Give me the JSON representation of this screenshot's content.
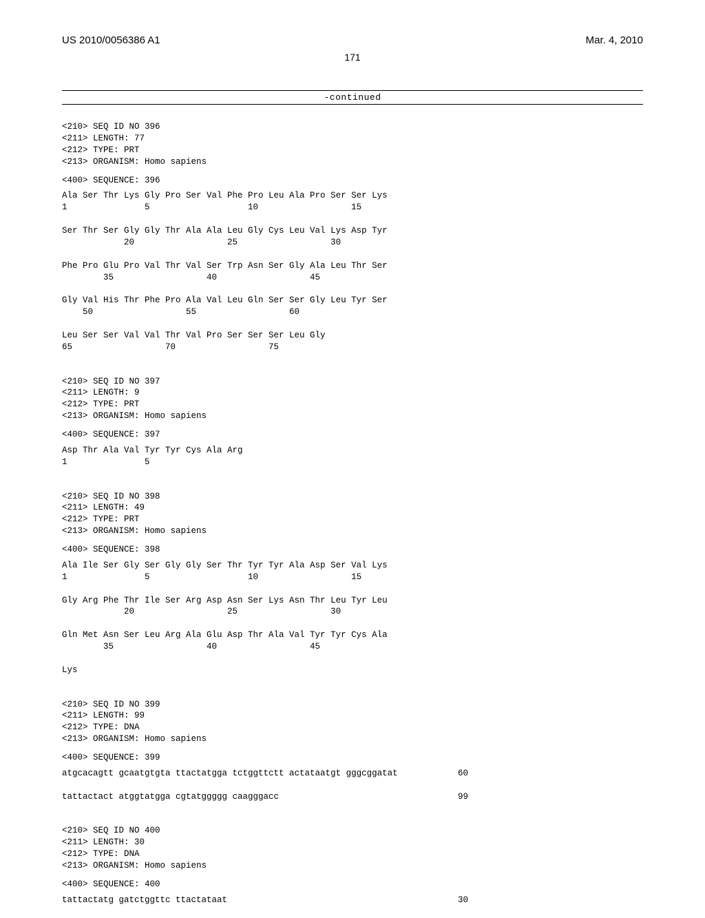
{
  "header": {
    "pub_number": "US 2010/0056386 A1",
    "pub_date": "Mar. 4, 2010"
  },
  "page_number": "171",
  "continued_label": "-continued",
  "sequences": [
    {
      "meta": [
        "<210> SEQ ID NO 396",
        "<211> LENGTH: 77",
        "<212> TYPE: PRT",
        "<213> ORGANISM: Homo sapiens"
      ],
      "seq_header": "<400> SEQUENCE: 396",
      "lines": [
        {
          "residues": "Ala Ser Thr Lys Gly Pro Ser Val Phe Pro Leu Ala Pro Ser Ser Lys",
          "numbers": "1               5                   10                  15"
        },
        {
          "residues": "Ser Thr Ser Gly Gly Thr Ala Ala Leu Gly Cys Leu Val Lys Asp Tyr",
          "numbers": "            20                  25                  30"
        },
        {
          "residues": "Phe Pro Glu Pro Val Thr Val Ser Trp Asn Ser Gly Ala Leu Thr Ser",
          "numbers": "        35                  40                  45"
        },
        {
          "residues": "Gly Val His Thr Phe Pro Ala Val Leu Gln Ser Ser Gly Leu Tyr Ser",
          "numbers": "    50                  55                  60"
        },
        {
          "residues": "Leu Ser Ser Val Val Thr Val Pro Ser Ser Ser Leu Gly",
          "numbers": "65                  70                  75"
        }
      ]
    },
    {
      "meta": [
        "<210> SEQ ID NO 397",
        "<211> LENGTH: 9",
        "<212> TYPE: PRT",
        "<213> ORGANISM: Homo sapiens"
      ],
      "seq_header": "<400> SEQUENCE: 397",
      "lines": [
        {
          "residues": "Asp Thr Ala Val Tyr Tyr Cys Ala Arg",
          "numbers": "1               5"
        }
      ]
    },
    {
      "meta": [
        "<210> SEQ ID NO 398",
        "<211> LENGTH: 49",
        "<212> TYPE: PRT",
        "<213> ORGANISM: Homo sapiens"
      ],
      "seq_header": "<400> SEQUENCE: 398",
      "lines": [
        {
          "residues": "Ala Ile Ser Gly Ser Gly Gly Ser Thr Tyr Tyr Ala Asp Ser Val Lys",
          "numbers": "1               5                   10                  15"
        },
        {
          "residues": "Gly Arg Phe Thr Ile Ser Arg Asp Asn Ser Lys Asn Thr Leu Tyr Leu",
          "numbers": "            20                  25                  30"
        },
        {
          "residues": "Gln Met Asn Ser Leu Arg Ala Glu Asp Thr Ala Val Tyr Tyr Cys Ala",
          "numbers": "        35                  40                  45"
        },
        {
          "residues": "Lys",
          "numbers": ""
        }
      ]
    },
    {
      "meta": [
        "<210> SEQ ID NO 399",
        "<211> LENGTH: 99",
        "<212> TYPE: DNA",
        "<213> ORGANISM: Homo sapiens"
      ],
      "seq_header": "<400> SEQUENCE: 399",
      "dna_lines": [
        {
          "seq": "atgcacagtt gcaatgtgta ttactatgga tctggttctt actataatgt gggcggatat",
          "pos": "60"
        },
        {
          "seq": "tattactact atggtatgga cgtatggggg caagggacc",
          "pos": "99"
        }
      ]
    },
    {
      "meta": [
        "<210> SEQ ID NO 400",
        "<211> LENGTH: 30",
        "<212> TYPE: DNA",
        "<213> ORGANISM: Homo sapiens"
      ],
      "seq_header": "<400> SEQUENCE: 400",
      "dna_lines": [
        {
          "seq": "tattactatg gatctggttc ttactataat",
          "pos": "30"
        }
      ]
    }
  ]
}
